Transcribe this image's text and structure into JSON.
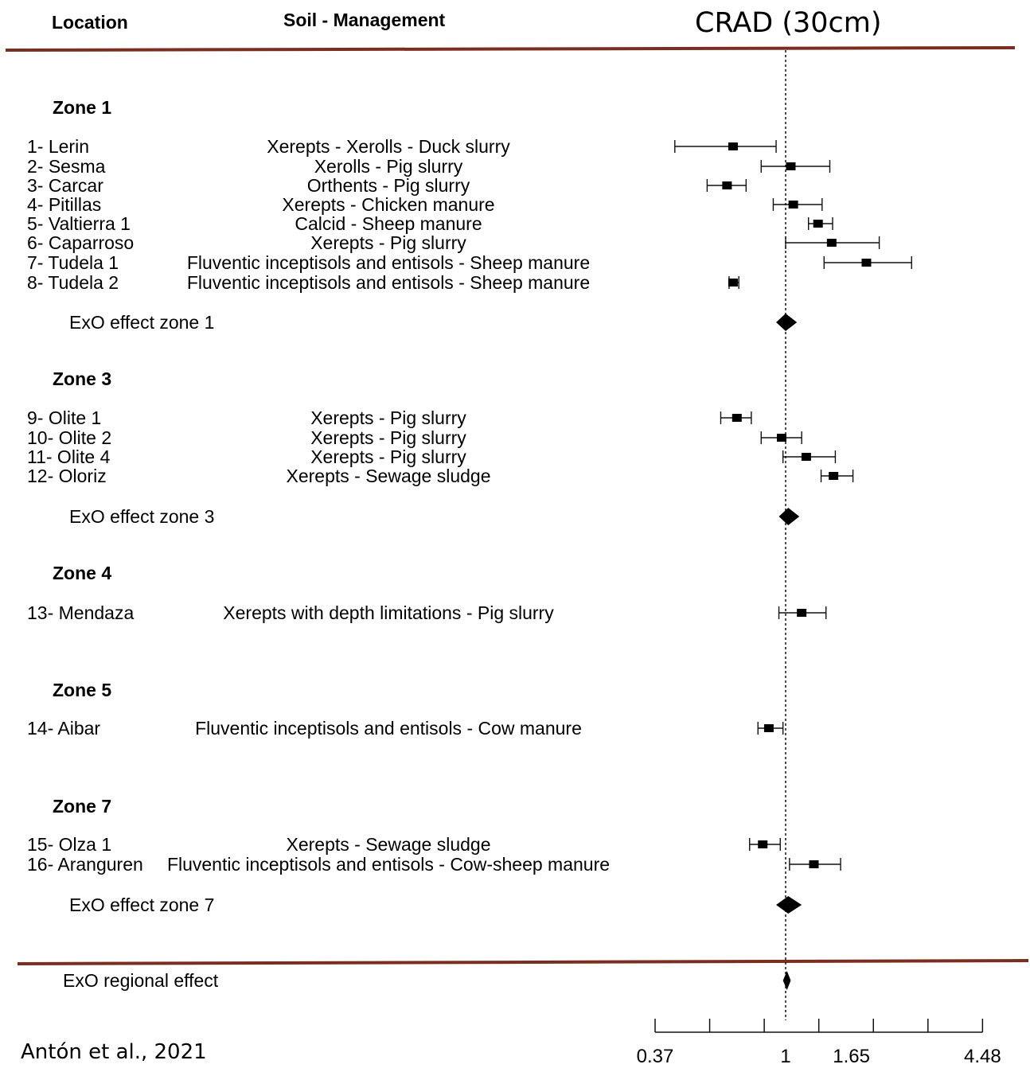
{
  "header": {
    "location": "Location",
    "soil_management": "Soil - Management",
    "title": "CRAD (30cm)"
  },
  "citation": "Antón et al., 2021",
  "chart_data": {
    "type": "forest",
    "title": "CRAD (30cm)",
    "x_scale": "log",
    "xlim": [
      0.37,
      4.48
    ],
    "xticks": [
      0.37,
      1,
      1.65,
      4.48
    ],
    "xtick_labels": [
      "0.37",
      "1",
      "1.65",
      "4.48"
    ],
    "reference_line": 1,
    "zones": [
      {
        "name": "Zone 1",
        "studies": [
          {
            "location": "1- Lerin",
            "soil": "Xerepts - Xerolls - Duck slurry",
            "est": 0.67,
            "lo": 0.43,
            "hi": 0.93
          },
          {
            "location": "2- Sesma",
            "soil": "Xerolls - Pig slurry",
            "est": 1.04,
            "lo": 0.83,
            "hi": 1.4
          },
          {
            "location": "3- Carcar",
            "soil": "Orthents - Pig slurry",
            "est": 0.64,
            "lo": 0.55,
            "hi": 0.74
          },
          {
            "location": "4- Pitillas",
            "soil": "Xerepts - Chicken manure",
            "est": 1.06,
            "lo": 0.91,
            "hi": 1.32
          },
          {
            "location": "5- Valtierra 1",
            "soil": "Calcid - Sheep manure",
            "est": 1.28,
            "lo": 1.19,
            "hi": 1.43
          },
          {
            "location": "6- Caparroso",
            "soil": "Xerepts - Pig slurry",
            "est": 1.42,
            "lo": 1.0,
            "hi": 2.04
          },
          {
            "location": "7- Tudela 1",
            "soil": "Fluventic inceptisols and entisols - Sheep manure",
            "est": 1.85,
            "lo": 1.34,
            "hi": 2.61
          },
          {
            "location": "8- Tudela 2",
            "soil": "Fluventic inceptisols and entisols - Sheep manure",
            "est": 0.67,
            "lo": 0.65,
            "hi": 0.7
          }
        ],
        "effect": {
          "label": "ExO effect zone 1",
          "est": 1.0,
          "lo": 0.93,
          "hi": 1.09
        }
      },
      {
        "name": "Zone 3",
        "studies": [
          {
            "location": "9- Olite 1",
            "soil": "Xerepts - Pig slurry",
            "est": 0.69,
            "lo": 0.61,
            "hi": 0.77
          },
          {
            "location": "10- Olite 2",
            "soil": "Xerepts - Pig slurry",
            "est": 0.97,
            "lo": 0.83,
            "hi": 1.13
          },
          {
            "location": "11- Olite 4",
            "soil": "Xerepts - Pig slurry",
            "est": 1.17,
            "lo": 0.98,
            "hi": 1.46
          },
          {
            "location": "12- Oloriz",
            "soil": "Xerepts - Sewage sludge",
            "est": 1.44,
            "lo": 1.31,
            "hi": 1.67
          }
        ],
        "effect": {
          "label": "ExO effect zone 3",
          "est": 1.02,
          "lo": 0.95,
          "hi": 1.11
        }
      },
      {
        "name": "Zone 4",
        "studies": [
          {
            "location": "13- Mendaza",
            "soil": "Xerepts with depth limitations - Pig slurry",
            "est": 1.13,
            "lo": 0.95,
            "hi": 1.36
          }
        ]
      },
      {
        "name": "Zone 5",
        "studies": [
          {
            "location": "14- Aibar",
            "soil": "Fluventic inceptisols and entisols - Cow manure",
            "est": 0.88,
            "lo": 0.81,
            "hi": 0.98
          }
        ]
      },
      {
        "name": "Zone 7",
        "studies": [
          {
            "location": "15- Olza 1",
            "soil": "Xerepts - Sewage sludge",
            "est": 0.84,
            "lo": 0.76,
            "hi": 0.96
          },
          {
            "location": "16- Aranguren",
            "soil": "Fluventic inceptisols and entisols - Cow-sheep manure",
            "est": 1.24,
            "lo": 1.03,
            "hi": 1.52
          }
        ],
        "effect": {
          "label": "ExO effect zone 7",
          "est": 1.02,
          "lo": 0.93,
          "hi": 1.13
        }
      }
    ],
    "overall": {
      "label": "ExO regional effect",
      "est": 1.01,
      "lo": 0.98,
      "hi": 1.04
    }
  }
}
